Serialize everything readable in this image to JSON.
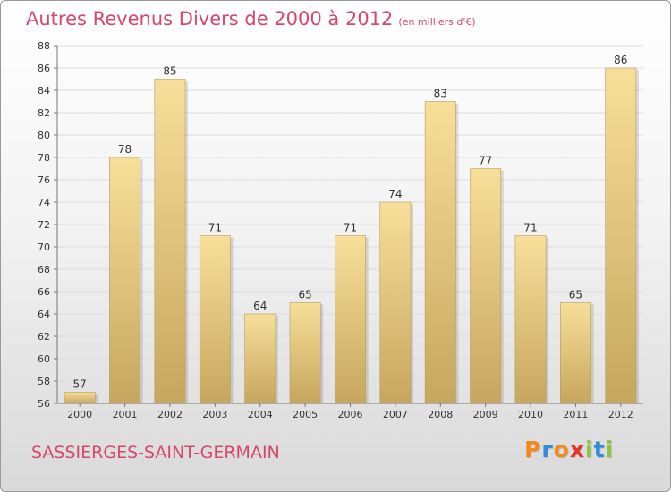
{
  "page": {
    "title": "Autres Revenus Divers de 2000 à 2012",
    "subtitle": "(en milliers d'€)",
    "place": "SASSIERGES-SAINT-GERMAIN",
    "logo": {
      "letters": [
        "P",
        "r",
        "o",
        "x",
        "i",
        "t",
        "i"
      ],
      "colors": [
        "#f08a1c",
        "#2f8bd6",
        "#f08a1c",
        "#e6332a",
        "#8cc63f",
        "#2f8bd6",
        "#8cc63f"
      ]
    }
  },
  "chart_data": {
    "type": "bar",
    "categories": [
      "2000",
      "2001",
      "2002",
      "2003",
      "2004",
      "2005",
      "2006",
      "2007",
      "2008",
      "2009",
      "2010",
      "2011",
      "2012"
    ],
    "values": [
      57,
      78,
      85,
      71,
      64,
      65,
      71,
      74,
      83,
      77,
      71,
      65,
      86
    ],
    "ylim": [
      56,
      88
    ],
    "yticks": [
      56,
      58,
      60,
      62,
      64,
      66,
      68,
      70,
      72,
      74,
      76,
      78,
      80,
      82,
      84,
      86,
      88
    ],
    "grid": true,
    "colors": {
      "bar_top": "#f7df9a",
      "bar_bottom": "#c7a65e",
      "text": "#333333",
      "grid": "#dddddd"
    }
  }
}
